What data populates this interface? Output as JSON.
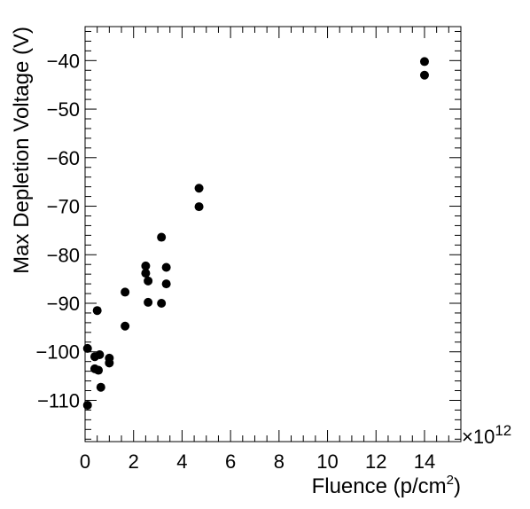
{
  "chart_data": {
    "type": "scatter",
    "xlabel": "Fluence (p/cm",
    "xlabel_sup": "2",
    "xlabel_close": ")",
    "ylabel": "Max Depletion Voltage (V)",
    "x_multiplier_label": "×10",
    "x_multiplier_exp": "12",
    "xlim": [
      0,
      15.5
    ],
    "ylim": [
      -118.5,
      -33
    ],
    "x_ticks": [
      0,
      2,
      4,
      6,
      8,
      10,
      12,
      14
    ],
    "y_ticks": [
      -110,
      -100,
      -90,
      -80,
      -70,
      -60,
      -50,
      -40
    ],
    "x_tick_labels": [
      "0",
      "2",
      "4",
      "6",
      "8",
      "10",
      "12",
      "14"
    ],
    "y_tick_labels": [
      "−110",
      "−100",
      "−90",
      "−80",
      "−70",
      "−60",
      "−50",
      "−40"
    ],
    "grid": false,
    "marker_color": "#000000",
    "series": [
      {
        "points": [
          [
            0.1,
            -99.3
          ],
          [
            0.1,
            -111.0
          ],
          [
            0.4,
            -101.0
          ],
          [
            0.4,
            -103.5
          ],
          [
            0.5,
            -91.5
          ],
          [
            0.55,
            -103.8
          ],
          [
            0.6,
            -100.6
          ],
          [
            0.65,
            -107.3
          ],
          [
            1.0,
            -101.3
          ],
          [
            1.0,
            -102.3
          ],
          [
            1.65,
            -87.7
          ],
          [
            1.65,
            -94.7
          ],
          [
            2.5,
            -82.3
          ],
          [
            2.5,
            -83.8
          ],
          [
            2.6,
            -85.4
          ],
          [
            2.6,
            -89.8
          ],
          [
            3.15,
            -76.4
          ],
          [
            3.15,
            -90.0
          ],
          [
            3.35,
            -82.6
          ],
          [
            3.35,
            -86.0
          ],
          [
            4.7,
            -66.3
          ],
          [
            4.7,
            -70.1
          ],
          [
            14.0,
            -40.2
          ],
          [
            14.0,
            -43.0
          ]
        ]
      }
    ]
  }
}
